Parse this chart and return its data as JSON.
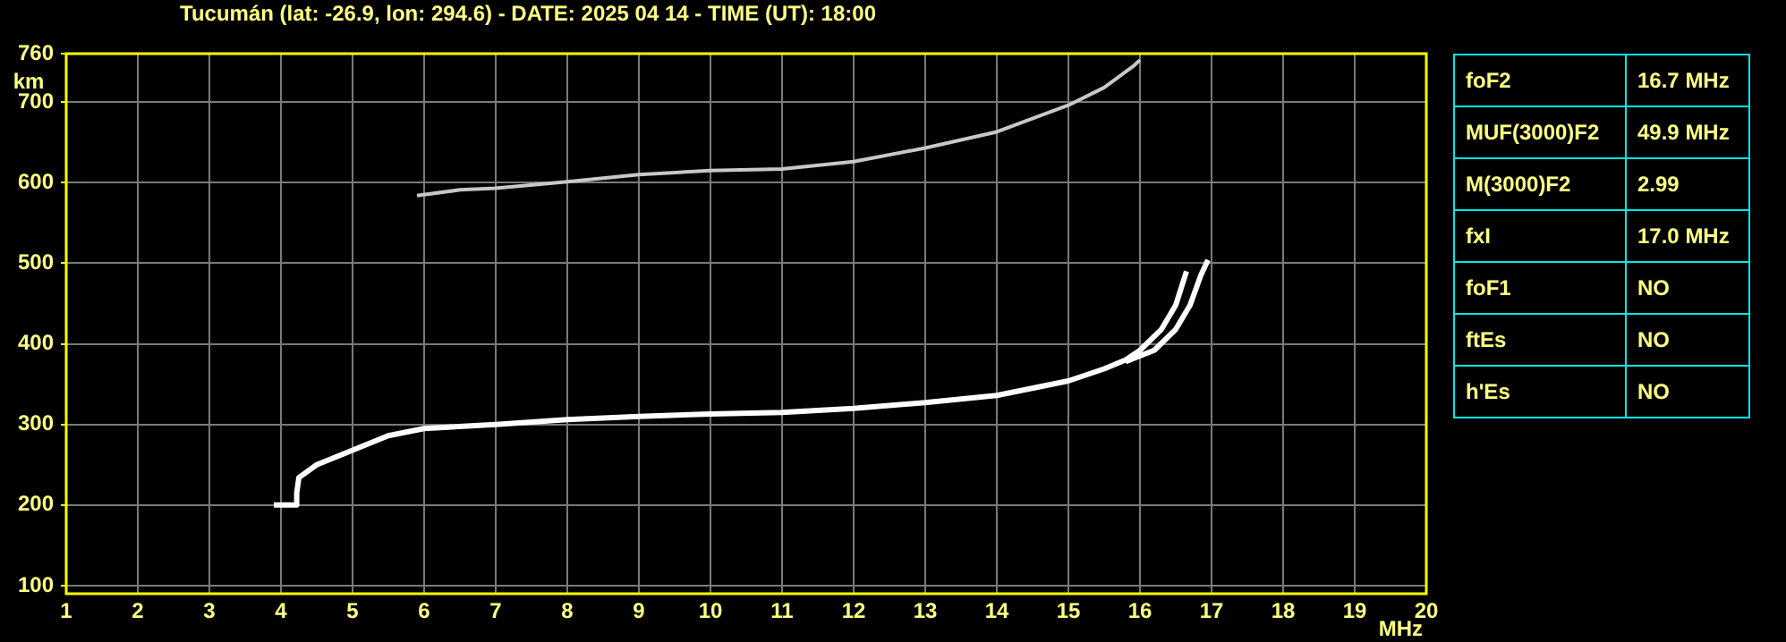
{
  "chart_data": {
    "type": "line",
    "title": "Tucumán (lat: -26.9, lon: 294.6) - DATE: 2025 04 14 - TIME (UT): 18:00",
    "xlabel": "MHz",
    "ylabel": "km",
    "xlim": [
      1,
      20
    ],
    "xticks": [
      1,
      2,
      3,
      4,
      5,
      6,
      7,
      8,
      9,
      10,
      11,
      12,
      13,
      14,
      15,
      16,
      17,
      18,
      19,
      20
    ],
    "ylim": [
      90,
      760
    ],
    "yticks": [
      100,
      200,
      300,
      400,
      500,
      600,
      700,
      760
    ],
    "grid": true,
    "legend": false,
    "series": [
      {
        "color": "#ffffff",
        "x": [
          3.9,
          4.2,
          4.22,
          4.25,
          4.5,
          5,
          5.5,
          6,
          7,
          8,
          9,
          10,
          11,
          12,
          13,
          14,
          15,
          15.5,
          15.8,
          16,
          16.3,
          16.5,
          16.65
        ],
        "values": [
          200,
          200,
          215,
          234,
          250,
          268,
          286,
          295,
          300,
          306,
          310,
          313,
          315,
          320,
          327,
          336,
          354,
          369,
          380,
          392,
          418,
          448,
          490
        ]
      },
      {
        "color": "#ffffff",
        "x": [
          15.8,
          16,
          16.2,
          16.5,
          16.7,
          16.85,
          16.95
        ],
        "values": [
          378,
          385,
          392,
          418,
          448,
          485,
          504
        ]
      },
      {
        "color": "#c8c8c8",
        "x": [
          5.9,
          6.5,
          7,
          8,
          9,
          10,
          11,
          12,
          13,
          14,
          15,
          15.5,
          15.9,
          16
        ],
        "values": [
          584,
          591,
          593,
          601,
          610,
          615,
          617,
          626,
          643,
          663,
          696,
          718,
          744,
          752
        ]
      }
    ],
    "annotations": [
      "foF2",
      "16.7 MHz",
      "MUF(3000)F2",
      "49.9 MHz",
      "M(3000)F2",
      "2.99",
      "fxI",
      "17.0 MHz",
      "foF1",
      "NO",
      "ftEs",
      "NO",
      "h'Es",
      "NO"
    ]
  }
}
